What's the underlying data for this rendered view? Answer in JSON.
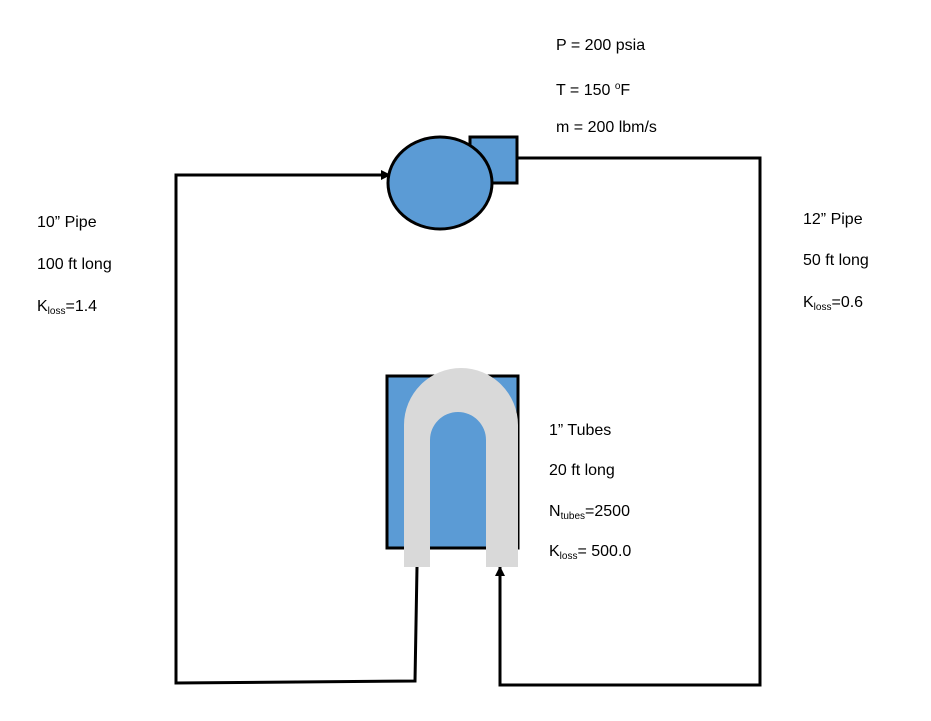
{
  "pump_conditions": {
    "pressure": "P = 200 psia",
    "temperature_prefix": "T = 150 ",
    "temperature_degree": "o",
    "temperature_unit": "F",
    "mass_flow": "m = 200 lbm/s"
  },
  "left_pipe": {
    "size": "10” Pipe",
    "length": "100 ft long",
    "k_symbol": "K",
    "k_subscript": "loss",
    "k_value": "=1.4"
  },
  "right_pipe": {
    "size": "12” Pipe",
    "length": "50 ft long",
    "k_symbol": "K",
    "k_subscript": "loss",
    "k_value": "=0.6"
  },
  "heat_exchanger": {
    "tube_size": "1” Tubes",
    "length": "20 ft long",
    "n_symbol": "N",
    "n_subscript": "tubes",
    "n_value": "=2500",
    "k_symbol": "K",
    "k_subscript": "loss",
    "k_value": "= 500.0"
  },
  "colors": {
    "component_fill": "#5b9bd5",
    "tube_fill": "#d9d9d9",
    "line": "#000000"
  }
}
